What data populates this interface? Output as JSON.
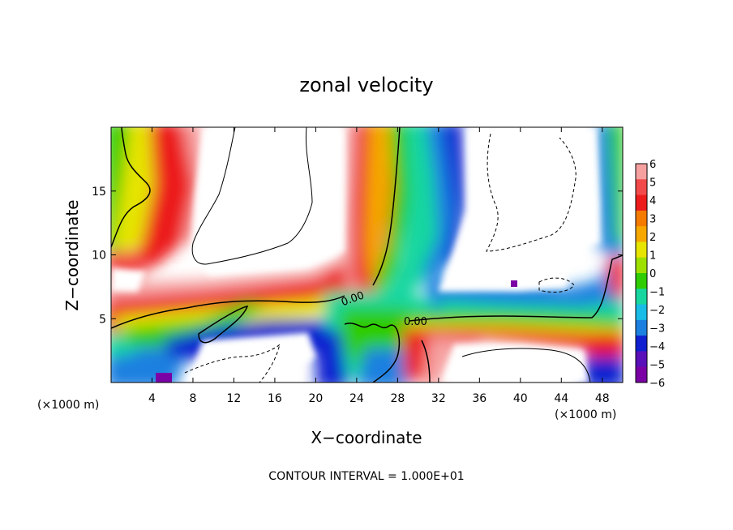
{
  "chart_data": {
    "type": "heatmap",
    "title": "zonal velocity",
    "xlabel": "X−coordinate",
    "ylabel": "Z−coordinate",
    "x_unit_label": "(×1000 m)",
    "xlim": [
      0,
      50
    ],
    "ylim": [
      0,
      20
    ],
    "x_ticks": [
      4,
      8,
      12,
      16,
      20,
      24,
      28,
      32,
      36,
      40,
      44,
      48
    ],
    "y_ticks": [
      5,
      10,
      15
    ],
    "colorbar": {
      "levels": [
        6,
        5,
        4,
        3,
        2,
        1,
        0,
        -1,
        -2,
        -3,
        -4,
        -5,
        -6
      ],
      "labels": [
        "6",
        "5",
        "4",
        "3",
        "2",
        "1",
        "0",
        "−1",
        "−2",
        "−3",
        "−4",
        "−5",
        "−6"
      ],
      "colors": [
        "#f6a0a0",
        "#f24a4a",
        "#ec1c1c",
        "#f47a00",
        "#f6a800",
        "#e6e400",
        "#9ee000",
        "#2ecc00",
        "#18d6a0",
        "#18bce6",
        "#1c80e0",
        "#1020d0",
        "#5a10b8",
        "#7a00a6"
      ]
    },
    "contour_labels": [
      "0.00",
      "0.00"
    ],
    "footer": "CONTOUR INTERVAL = 1.000E+01"
  }
}
